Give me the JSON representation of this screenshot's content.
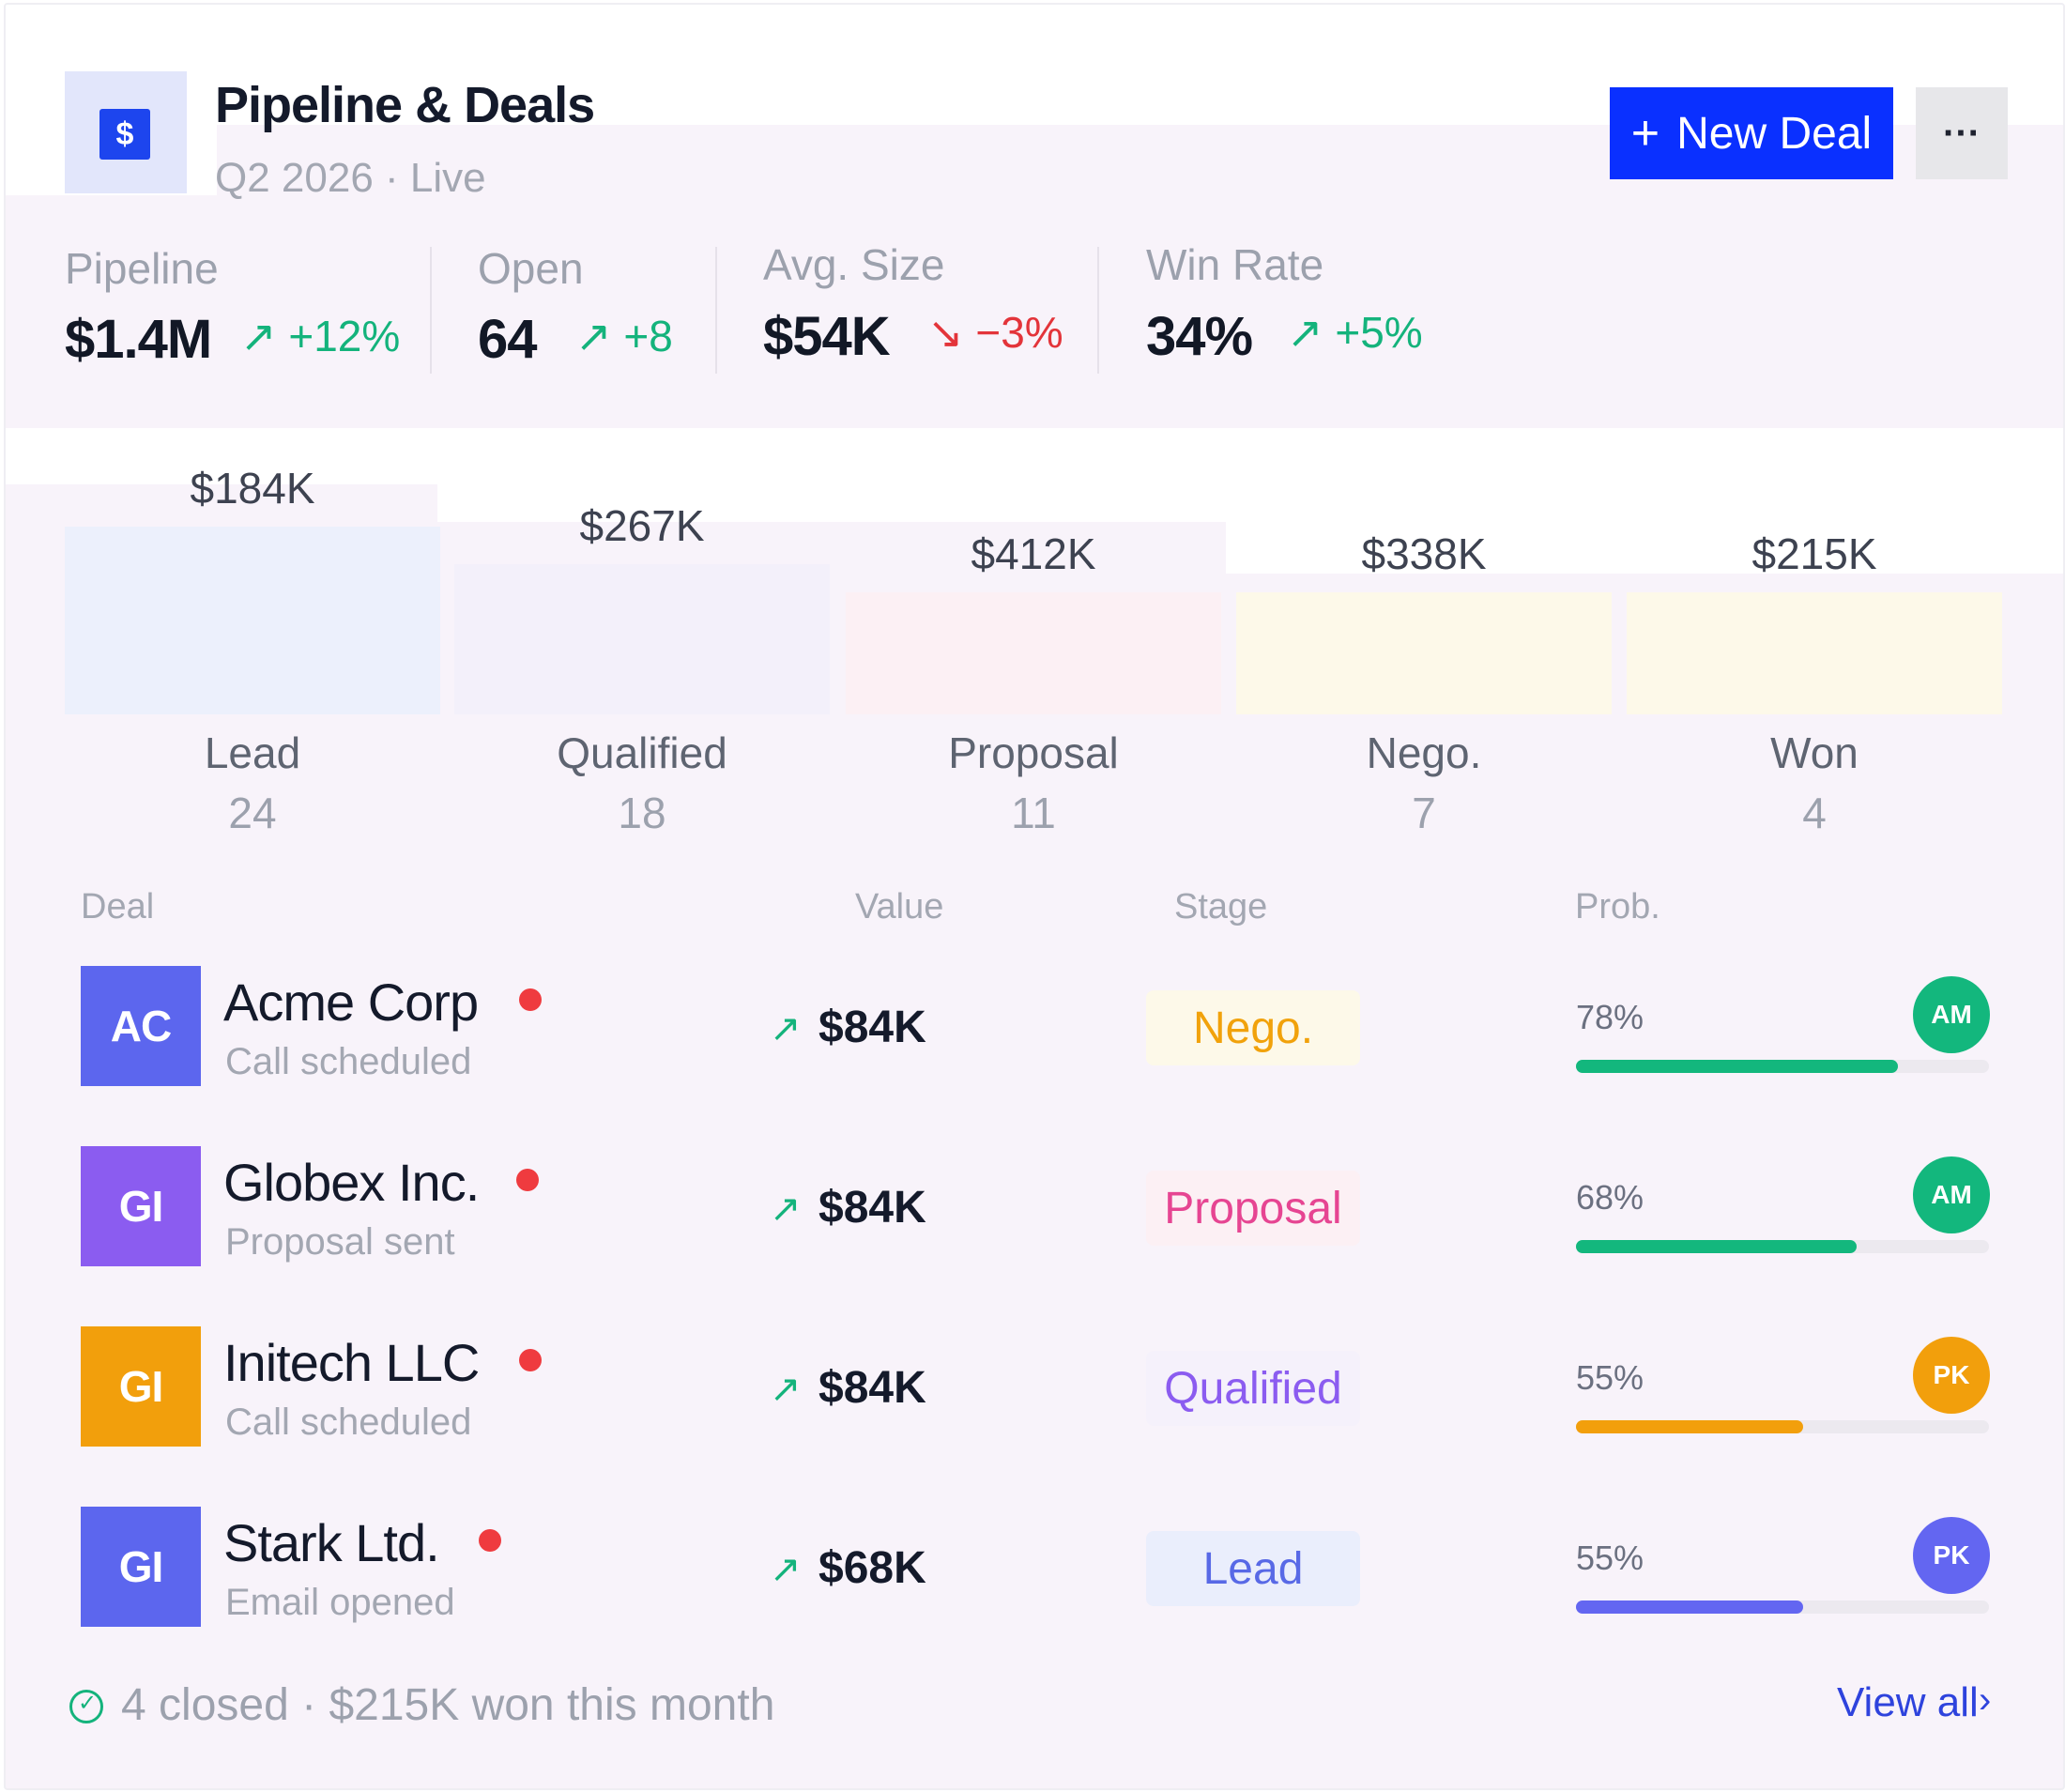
{
  "header": {
    "logo_symbol": "$",
    "title": "Pipeline & Deals",
    "subtitle": "Q2 2026 · Live",
    "new_deal_icon": "+",
    "new_deal_label": "New Deal",
    "more_label": "···"
  },
  "kpis": [
    {
      "label": "Pipeline",
      "value": "$1.4M",
      "trend_icon": "↗",
      "delta": "+12%",
      "direction": "up"
    },
    {
      "label": "Open",
      "value": "64",
      "trend_icon": "↗",
      "delta": "+8",
      "direction": "up"
    },
    {
      "label": "Avg. Size",
      "value": "$54K",
      "trend_icon": "↘",
      "delta": "−3%",
      "direction": "down"
    },
    {
      "label": "Win Rate",
      "value": "34%",
      "trend_icon": "↗",
      "delta": "+5%",
      "direction": "up"
    }
  ],
  "funnel": [
    {
      "value": "$184K",
      "amount": 184,
      "stage": "Lead",
      "count": "24",
      "color": "#ecf0fc"
    },
    {
      "value": "$267K",
      "amount": 267,
      "stage": "Qualified",
      "count": "18",
      "color": "#f3f0fa"
    },
    {
      "value": "$412K",
      "amount": 412,
      "stage": "Proposal",
      "count": "11",
      "color": "#fcf0f4"
    },
    {
      "value": "$338K",
      "amount": 338,
      "stage": "Nego.",
      "count": "7",
      "color": "#fdf9e9"
    },
    {
      "value": "$215K",
      "amount": 215,
      "stage": "Won",
      "count": "4",
      "color": "#fdf9e9"
    }
  ],
  "table": {
    "headers": {
      "deal": "Deal",
      "value": "Value",
      "stage": "Stage",
      "prob": "Prob."
    },
    "rows": [
      {
        "initials": "AC",
        "avatar_color": "#5c66ee",
        "name": "Acme Corp",
        "status": "Call scheduled",
        "value_icon": "↗",
        "value": "$84K",
        "stage": "Nego.",
        "stage_color": "#f1a20b",
        "stage_bg": "#fdf9e9",
        "prob": "78%",
        "prob_value": 0.78,
        "bar_color": "#13b77d",
        "owner": "AM",
        "owner_color": "#13b77d"
      },
      {
        "initials": "GI",
        "avatar_color": "#8b5cf0",
        "name": "Globex Inc.",
        "status": "Proposal sent",
        "value_icon": "↗",
        "value": "$84K",
        "stage": "Proposal",
        "stage_color": "#e64592",
        "stage_bg": "#fcf0f4",
        "prob": "68%",
        "prob_value": 0.68,
        "bar_color": "#13b77d",
        "owner": "AM",
        "owner_color": "#13b77d"
      },
      {
        "initials": "GI",
        "avatar_color": "#f29f0c",
        "name": "Initech LLC",
        "status": "Call scheduled",
        "value_icon": "↗",
        "value": "$84K",
        "stage": "Qualified",
        "stage_color": "#8b5cf0",
        "stage_bg": "#f5f1fb",
        "prob": "55%",
        "prob_value": 0.55,
        "bar_color": "#f29f0c",
        "owner": "PK",
        "owner_color": "#f29f0c"
      },
      {
        "initials": "GI",
        "avatar_color": "#5c66ee",
        "name": "Stark Ltd.",
        "status": "Email opened",
        "value_icon": "↗",
        "value": "$68K",
        "stage": "Lead",
        "stage_color": "#5869e6",
        "stage_bg": "#eaeefc",
        "prob": "55%",
        "prob_value": 0.55,
        "bar_color": "#6366f1",
        "owner": "PK",
        "owner_color": "#6366f1"
      }
    ]
  },
  "footer": {
    "check_icon": "✓",
    "summary": "4 closed · $215K won this month",
    "view_all": "View all",
    "chevron": "›"
  }
}
